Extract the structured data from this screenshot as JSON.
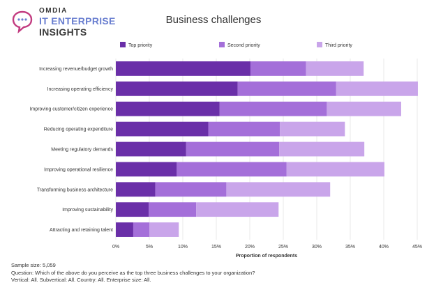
{
  "brand": {
    "name": "OMDIA",
    "line1": "IT ENTERPRISE",
    "line2": "INSIGHTS"
  },
  "chart_data": {
    "type": "bar",
    "orientation": "horizontal",
    "stacked": true,
    "title": "Business challenges",
    "xlabel": "Proportion of respondents",
    "ylabel": "",
    "xlim": [
      0,
      45
    ],
    "xticks": [
      0,
      5,
      10,
      15,
      20,
      25,
      30,
      35,
      40,
      45
    ],
    "xtick_labels": [
      "0%",
      "5%",
      "10%",
      "15%",
      "20%",
      "25%",
      "30%",
      "35%",
      "40%",
      "45%"
    ],
    "grid": true,
    "legend_position": "top",
    "categories": [
      "Increasing revenue/budget growth",
      "Increasing operating efficiency",
      "Improving customer/citizen experience",
      "Reducing operating expenditure",
      "Meeting regulatory demands",
      "Improving operational resilience",
      "Transforming business architecture",
      "Improving sustainability",
      "Attracting and retaining talent"
    ],
    "series": [
      {
        "name": "Top priority",
        "color": "#6a2fa8",
        "values": [
          20.1,
          18.2,
          15.5,
          13.8,
          10.5,
          9.1,
          5.9,
          4.9,
          2.6
        ]
      },
      {
        "name": "Second priority",
        "color": "#a46fd9",
        "values": [
          8.3,
          14.7,
          16.0,
          10.7,
          13.9,
          16.4,
          10.6,
          7.1,
          2.4
        ]
      },
      {
        "name": "Third priority",
        "color": "#c9a5ea",
        "values": [
          8.6,
          12.2,
          11.1,
          9.7,
          12.7,
          14.6,
          15.5,
          12.3,
          4.4
        ]
      }
    ]
  },
  "footer": {
    "sample": "Sample size: 5,059",
    "question": "Question: Which of the above do you perceive as the top three business challenges to your organization?",
    "filters": "Vertical: All. Subvertical: All. Country: All. Enterprise size: All."
  }
}
